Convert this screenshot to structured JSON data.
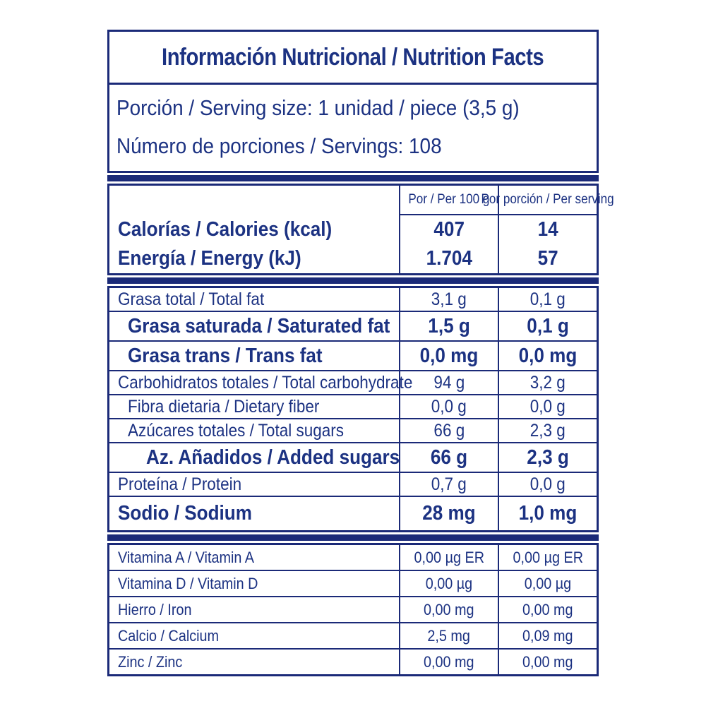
{
  "header": {
    "title": "Información Nutricional / Nutrition Facts",
    "serving_size": "Porción / Serving size: 1 unidad  / piece (3,5 g)",
    "servings": "Número de porciones / Servings: 108"
  },
  "columns": {
    "per100_label": "Por / Per 100 g",
    "per_serving_label": "Por porción / Per serving"
  },
  "colors": {
    "navy_border": "#1b2a78",
    "navy_text": "#1c3282",
    "background": "#ffffff"
  },
  "energy": {
    "rows": [
      {
        "label": "Calorías / Calories (kcal)",
        "per100": "407",
        "serving": "14"
      },
      {
        "label": "Energía / Energy (kJ)",
        "per100": "1.704",
        "serving": "57"
      }
    ]
  },
  "nutrients": {
    "rows": [
      {
        "label": "Grasa total / Total fat",
        "per100": "3,1 g",
        "serving": "0,1 g"
      },
      {
        "label": "Grasa saturada / Saturated fat",
        "per100": "1,5 g",
        "serving": "0,1 g"
      },
      {
        "label": "Grasa trans / Trans fat",
        "per100": "0,0 mg",
        "serving": "0,0 mg"
      },
      {
        "label": "Carbohidratos totales / Total carbohydrate",
        "per100": "94 g",
        "serving": "3,2 g"
      },
      {
        "label": "Fibra dietaria / Dietary fiber",
        "per100": "0,0 g",
        "serving": "0,0 g"
      },
      {
        "label": "Azúcares totales / Total sugars",
        "per100": "66 g",
        "serving": "2,3 g"
      },
      {
        "label": "Az. Añadidos / Added sugars",
        "per100": "66 g",
        "serving": "2,3 g"
      },
      {
        "label": "Proteína / Protein",
        "per100": "0,7 g",
        "serving": "0,0 g"
      },
      {
        "label": "Sodio / Sodium",
        "per100": "28 mg",
        "serving": "1,0 mg"
      }
    ]
  },
  "micronutrients": {
    "rows": [
      {
        "label": "Vitamina A / Vitamin A",
        "per100": "0,00 µg ER",
        "serving": "0,00 µg ER"
      },
      {
        "label": "Vitamina D / Vitamin D",
        "per100": "0,00 µg",
        "serving": "0,00 µg"
      },
      {
        "label": "Hierro / Iron",
        "per100": "0,00 mg",
        "serving": "0,00 mg"
      },
      {
        "label": "Calcio / Calcium",
        "per100": "2,5 mg",
        "serving": "0,09 mg"
      },
      {
        "label": "Zinc / Zinc",
        "per100": "0,00 mg",
        "serving": "0,00 mg"
      }
    ]
  }
}
